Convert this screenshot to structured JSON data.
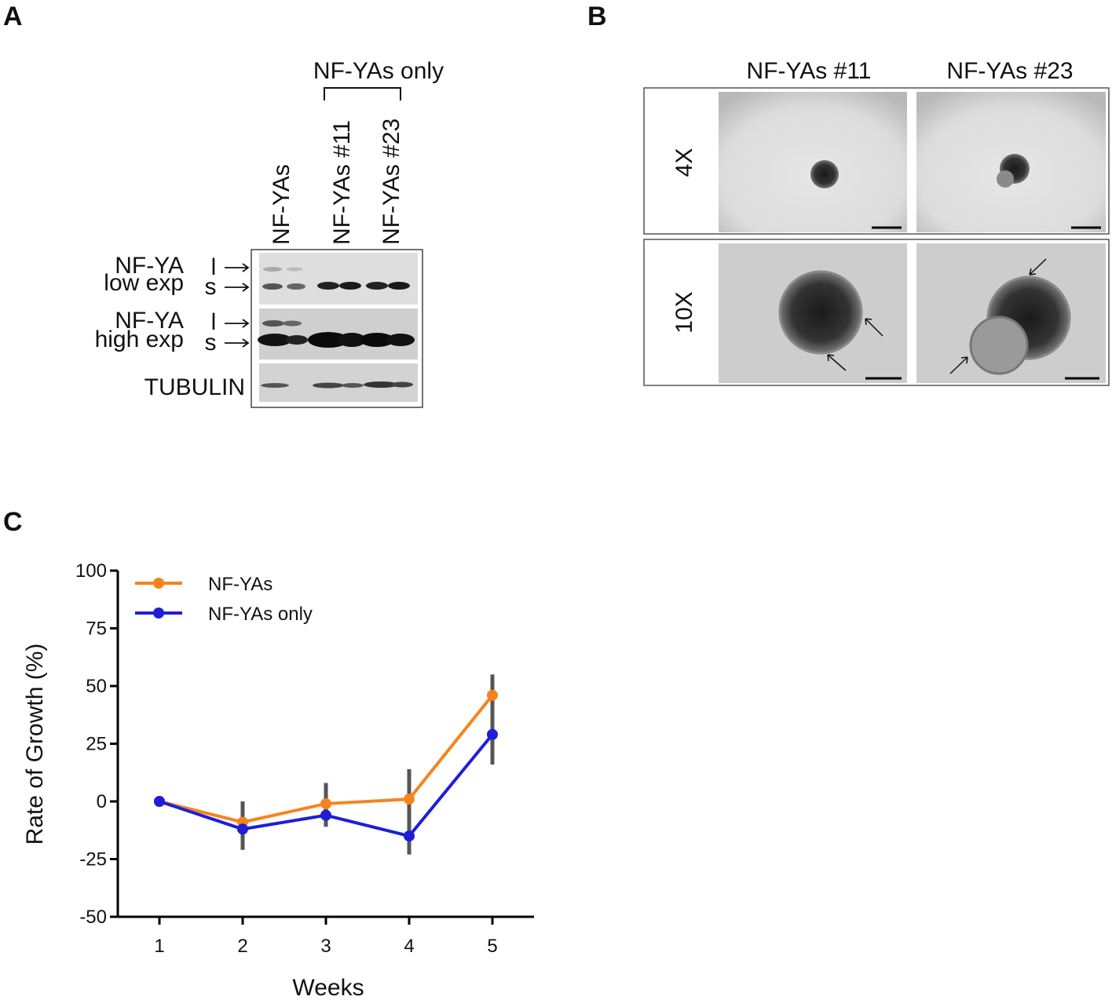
{
  "panel_a": {
    "label": "A",
    "group_label": "NF-YAs only",
    "lanes": [
      "NF-YAs",
      "NF-YAs #11",
      "NF-YAs #23"
    ],
    "rows": [
      {
        "label": "NF-YA",
        "sub_label": "low exp",
        "bands": [
          "l",
          "s"
        ]
      },
      {
        "label": "NF-YA",
        "sub_label": "high exp",
        "bands": [
          "l",
          "s"
        ]
      },
      {
        "label": "TUBULIN"
      }
    ]
  },
  "panel_b": {
    "label": "B",
    "columns": [
      "NF-YAs #11",
      "NF-YAs #23"
    ],
    "rows": [
      "4X",
      "10X"
    ]
  },
  "chart_data": {
    "type": "line",
    "panel_label": "C",
    "x": [
      1,
      2,
      3,
      4,
      5
    ],
    "xlim": [
      0.5,
      5.5
    ],
    "xticks": [
      1,
      2,
      3,
      4,
      5
    ],
    "ylim": [
      -50,
      100
    ],
    "yticks": [
      -50,
      -25,
      0,
      25,
      50,
      75,
      100
    ],
    "xlabel": "Weeks",
    "ylabel": "Rate of Growth (%)",
    "legend": "upper left",
    "error_bar_color": "#555555",
    "series": [
      {
        "name": "NF-YAs",
        "color": "#f5841f",
        "values": [
          0,
          -9,
          -1,
          1,
          46
        ],
        "errors": [
          0,
          9,
          9,
          13,
          9
        ]
      },
      {
        "name": "NF-YAs only",
        "color": "#1e1ed8",
        "values": [
          0,
          -12,
          -6,
          -15,
          29
        ],
        "errors": [
          0,
          9,
          5,
          8,
          13
        ]
      }
    ]
  }
}
